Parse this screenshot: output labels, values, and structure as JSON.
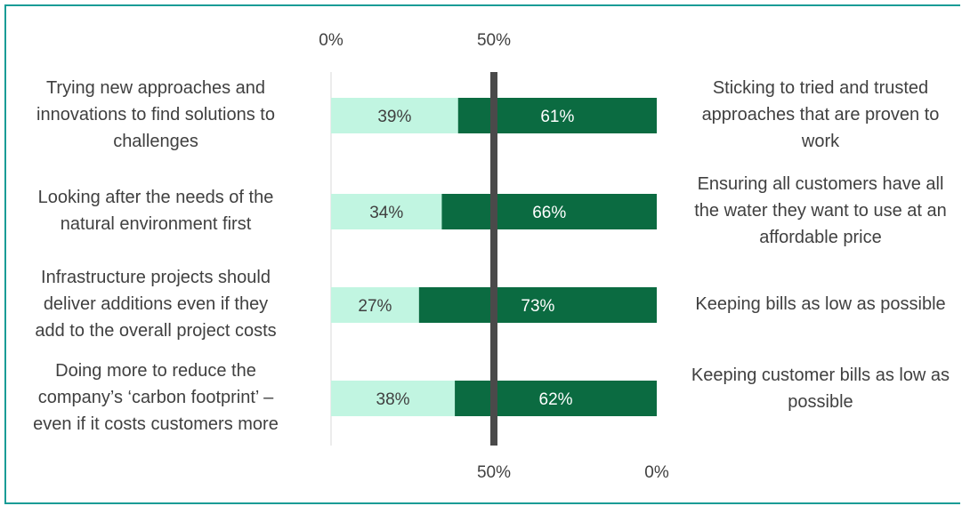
{
  "chart_data": {
    "type": "bar",
    "orientation": "horizontal",
    "stacked": true,
    "categories_left": [
      [
        "Trying new approaches and",
        "innovations to find solutions to",
        "challenges"
      ],
      [
        "Looking after the needs of the",
        "natural environment first"
      ],
      [
        "Infrastructure projects should",
        "deliver additions even if they",
        "add to the overall project costs"
      ],
      [
        "Doing more to reduce the",
        "company’s ‘carbon footprint’ –",
        "even if it costs customers more"
      ]
    ],
    "categories_right": [
      [
        "Sticking to tried and trusted",
        "approaches that are proven to",
        "work"
      ],
      [
        "Ensuring all customers have all",
        "the water they want to use at an",
        "affordable price"
      ],
      [
        "Keeping bills as low as possible"
      ],
      [
        "Keeping customer bills as low as",
        "possible"
      ]
    ],
    "series": [
      {
        "values": [
          39,
          34,
          27,
          38
        ],
        "data_labels": [
          "39%",
          "34%",
          "27%",
          "38%"
        ],
        "color": "#c1f5e1"
      },
      {
        "values": [
          61,
          66,
          73,
          62
        ],
        "data_labels": [
          "61%",
          "66%",
          "73%",
          "62%"
        ],
        "color": "#0b6b41"
      }
    ],
    "top_axis": {
      "ticks": [
        0,
        50
      ],
      "tick_labels": [
        "0%",
        "50%"
      ]
    },
    "bottom_axis": {
      "ticks": [
        50,
        0
      ],
      "tick_labels": [
        "50%",
        "0%"
      ]
    },
    "xlim": [
      0,
      100
    ],
    "midline": {
      "value": 50,
      "color": "#4a4a4a"
    },
    "grid": false,
    "legend": "none",
    "colors": {
      "frame": "#1a9c96",
      "text": "#404040",
      "left_axis_line": "#d9d9d9"
    }
  }
}
